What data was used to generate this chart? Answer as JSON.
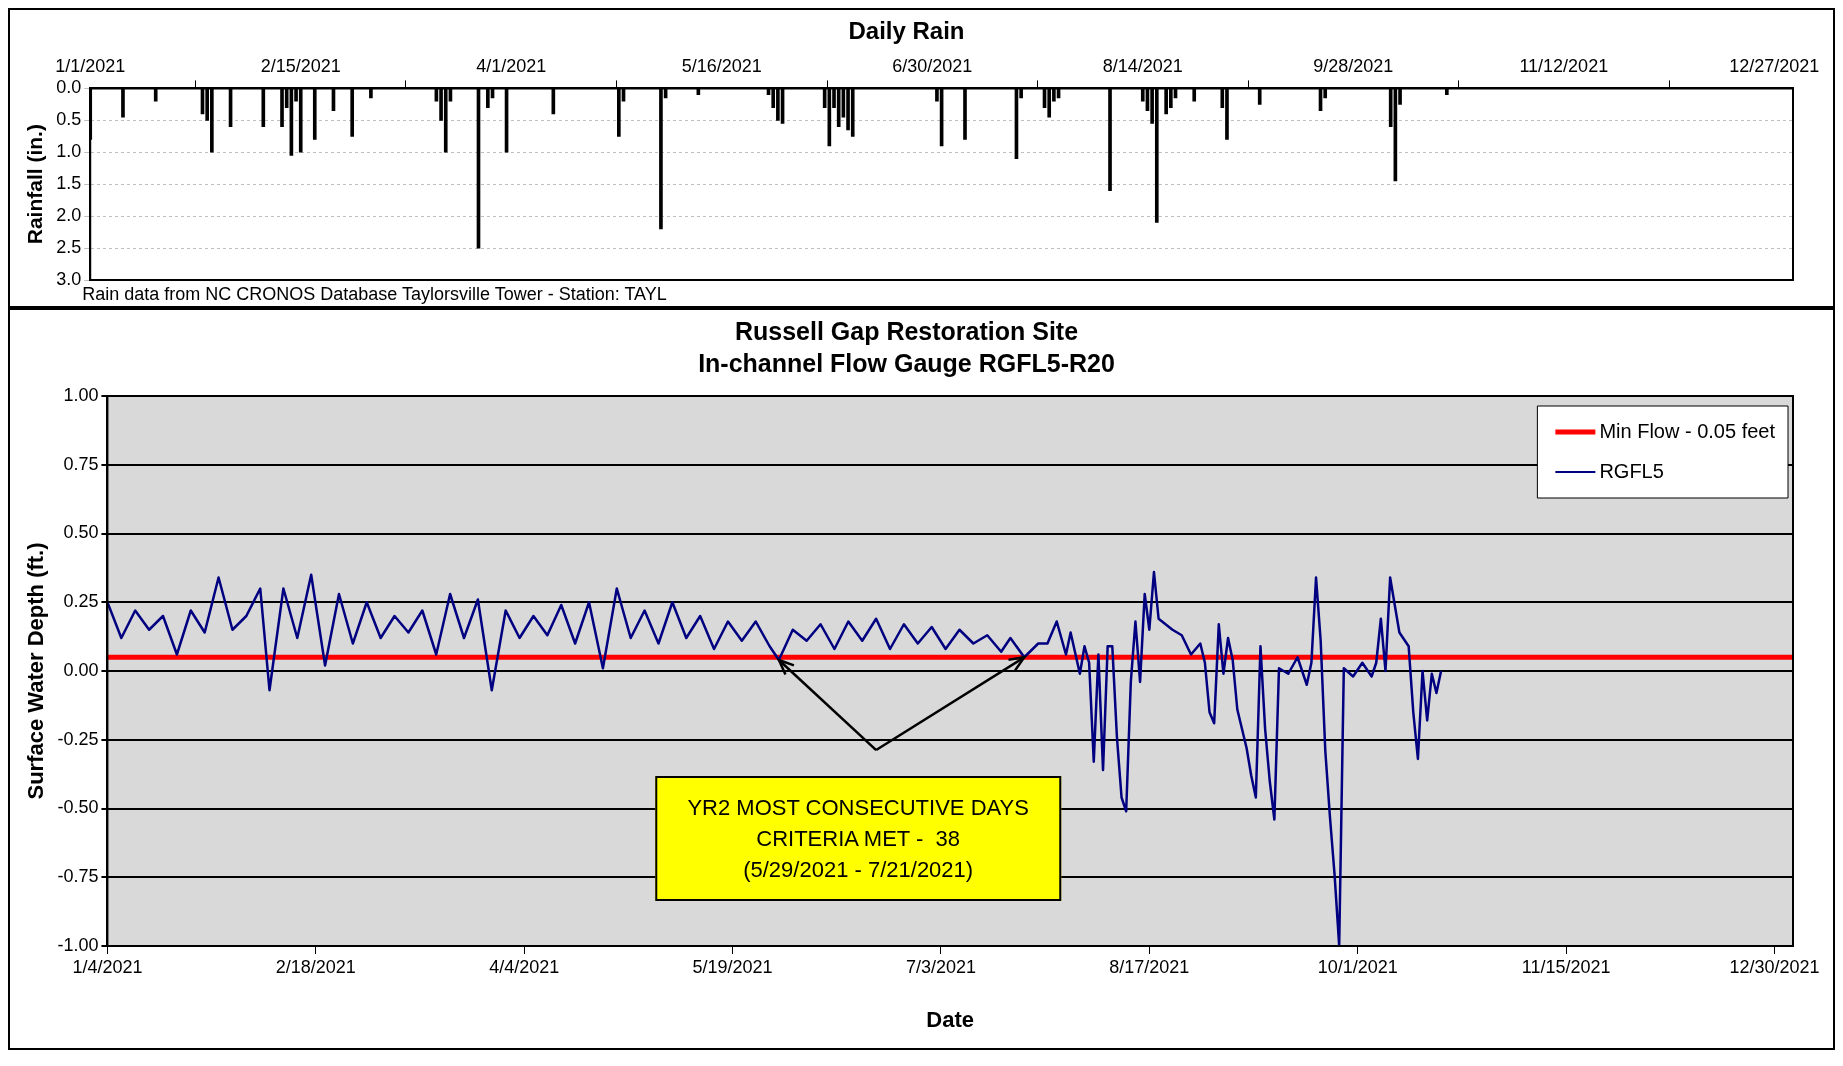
{
  "chart_data": [
    {
      "type": "bar",
      "title": "Daily Rain",
      "ylabel": "Rainfall (in.)",
      "color": "#000000",
      "x": [
        "2021-01-01",
        "2021-01-08",
        "2021-01-15",
        "2021-01-25",
        "2021-01-26",
        "2021-01-27",
        "2021-01-31",
        "2021-02-07",
        "2021-02-11",
        "2021-02-12",
        "2021-02-13",
        "2021-02-14",
        "2021-02-15",
        "2021-02-18",
        "2021-02-22",
        "2021-02-26",
        "2021-03-02",
        "2021-03-16",
        "2021-03-17",
        "2021-03-18",
        "2021-03-19",
        "2021-03-25",
        "2021-03-27",
        "2021-03-28",
        "2021-03-31",
        "2021-04-10",
        "2021-04-24",
        "2021-04-25",
        "2021-05-03",
        "2021-05-04",
        "2021-05-11",
        "2021-05-26",
        "2021-05-27",
        "2021-05-28",
        "2021-05-29",
        "2021-06-07",
        "2021-06-08",
        "2021-06-09",
        "2021-06-10",
        "2021-06-11",
        "2021-06-12",
        "2021-06-13",
        "2021-07-01",
        "2021-07-02",
        "2021-07-07",
        "2021-07-18",
        "2021-07-19",
        "2021-07-24",
        "2021-07-25",
        "2021-07-26",
        "2021-07-27",
        "2021-08-07",
        "2021-08-14",
        "2021-08-15",
        "2021-08-16",
        "2021-08-17",
        "2021-08-19",
        "2021-08-20",
        "2021-08-21",
        "2021-08-25",
        "2021-08-31",
        "2021-09-01",
        "2021-09-08",
        "2021-09-21",
        "2021-09-22",
        "2021-10-06",
        "2021-10-07",
        "2021-10-08",
        "2021-10-18"
      ],
      "values": [
        0.8,
        0.45,
        0.2,
        0.4,
        0.5,
        1.0,
        0.6,
        0.6,
        0.6,
        0.3,
        1.05,
        0.2,
        1.0,
        0.8,
        0.35,
        0.75,
        0.15,
        0.2,
        0.5,
        1.0,
        0.2,
        2.5,
        0.3,
        0.15,
        1.0,
        0.4,
        0.75,
        0.2,
        2.2,
        0.15,
        0.1,
        0.1,
        0.3,
        0.5,
        0.55,
        0.3,
        0.9,
        0.3,
        0.6,
        0.45,
        0.65,
        0.75,
        0.2,
        0.9,
        0.8,
        1.1,
        0.15,
        0.3,
        0.45,
        0.2,
        0.15,
        1.6,
        0.2,
        0.35,
        0.55,
        2.1,
        0.4,
        0.3,
        0.15,
        0.2,
        0.3,
        0.8,
        0.25,
        0.35,
        0.15,
        0.6,
        1.45,
        0.25,
        0.1
      ],
      "xlim": [
        "2021-01-01",
        "2021-12-31"
      ],
      "xticks": [
        {
          "value": "2021-01-01",
          "label": "1/1/2021"
        },
        {
          "value": "2021-02-15",
          "label": "2/15/2021"
        },
        {
          "value": "2021-04-01",
          "label": "4/1/2021"
        },
        {
          "value": "2021-05-16",
          "label": "5/16/2021"
        },
        {
          "value": "2021-06-30",
          "label": "6/30/2021"
        },
        {
          "value": "2021-08-14",
          "label": "8/14/2021"
        },
        {
          "value": "2021-09-28",
          "label": "9/28/2021"
        },
        {
          "value": "2021-11-12",
          "label": "11/12/2021"
        },
        {
          "value": "2021-12-27",
          "label": "12/27/2021"
        }
      ],
      "ylim": [
        3.0,
        0.0
      ],
      "yticks": [
        {
          "value": 0,
          "label": "0.0"
        },
        {
          "value": 0.5,
          "label": "0.5"
        },
        {
          "value": 1,
          "label": "1.0"
        },
        {
          "value": 1.5,
          "label": "1.5"
        },
        {
          "value": 2,
          "label": "2.0"
        },
        {
          "value": 2.5,
          "label": "2.5"
        },
        {
          "value": 3,
          "label": "3.0"
        }
      ],
      "grid": "y",
      "annotations": [
        "Rain data from NC CRONOS Database Taylorsville Tower - Station: TAYL"
      ]
    },
    {
      "type": "line",
      "title": "Russell Gap Restoration Site",
      "subtitle": "In-channel Flow Gauge RGFL5-R20",
      "xlabel": "Date",
      "ylabel": "Surface Water Depth (ft.)",
      "series": [
        {
          "name": "RGFL5",
          "color": "#000080",
          "x": [
            "2021-01-04",
            "2021-01-07",
            "2021-01-10",
            "2021-01-13",
            "2021-01-16",
            "2021-01-19",
            "2021-01-22",
            "2021-01-25",
            "2021-01-28",
            "2021-01-31",
            "2021-02-03",
            "2021-02-06",
            "2021-02-08",
            "2021-02-11",
            "2021-02-14",
            "2021-02-17",
            "2021-02-20",
            "2021-02-23",
            "2021-02-26",
            "2021-03-01",
            "2021-03-04",
            "2021-03-07",
            "2021-03-10",
            "2021-03-13",
            "2021-03-16",
            "2021-03-19",
            "2021-03-22",
            "2021-03-25",
            "2021-03-28",
            "2021-03-31",
            "2021-04-03",
            "2021-04-06",
            "2021-04-09",
            "2021-04-12",
            "2021-04-15",
            "2021-04-18",
            "2021-04-21",
            "2021-04-24",
            "2021-04-27",
            "2021-04-30",
            "2021-05-03",
            "2021-05-06",
            "2021-05-09",
            "2021-05-12",
            "2021-05-15",
            "2021-05-18",
            "2021-05-21",
            "2021-05-24",
            "2021-05-27",
            "2021-05-29",
            "2021-06-01",
            "2021-06-04",
            "2021-06-07",
            "2021-06-10",
            "2021-06-13",
            "2021-06-16",
            "2021-06-19",
            "2021-06-22",
            "2021-06-25",
            "2021-06-28",
            "2021-07-01",
            "2021-07-04",
            "2021-07-07",
            "2021-07-10",
            "2021-07-13",
            "2021-07-16",
            "2021-07-18",
            "2021-07-21",
            "2021-07-24",
            "2021-07-26",
            "2021-07-28",
            "2021-07-30",
            "2021-07-31",
            "2021-08-02",
            "2021-08-03",
            "2021-08-04",
            "2021-08-05",
            "2021-08-06",
            "2021-08-07",
            "2021-08-08",
            "2021-08-09",
            "2021-08-10",
            "2021-08-11",
            "2021-08-12",
            "2021-08-13",
            "2021-08-14",
            "2021-08-15",
            "2021-08-16",
            "2021-08-17",
            "2021-08-18",
            "2021-08-19",
            "2021-08-22",
            "2021-08-24",
            "2021-08-26",
            "2021-08-28",
            "2021-08-29",
            "2021-08-30",
            "2021-08-31",
            "2021-09-01",
            "2021-09-02",
            "2021-09-03",
            "2021-09-04",
            "2021-09-05",
            "2021-09-06",
            "2021-09-07",
            "2021-09-08",
            "2021-09-09",
            "2021-09-10",
            "2021-09-11",
            "2021-09-12",
            "2021-09-13",
            "2021-09-14",
            "2021-09-16",
            "2021-09-18",
            "2021-09-20",
            "2021-09-21",
            "2021-09-22",
            "2021-09-23",
            "2021-09-24",
            "2021-09-25",
            "2021-09-26",
            "2021-09-27",
            "2021-09-28",
            "2021-09-30",
            "2021-10-02",
            "2021-10-04",
            "2021-10-05",
            "2021-10-06",
            "2021-10-07",
            "2021-10-08",
            "2021-10-09",
            "2021-10-10",
            "2021-10-12",
            "2021-10-13",
            "2021-10-14",
            "2021-10-15",
            "2021-10-16",
            "2021-10-17",
            "2021-10-18",
            "2021-10-19"
          ],
          "values": [
            0.25,
            0.12,
            0.22,
            0.15,
            0.2,
            0.06,
            0.22,
            0.14,
            0.34,
            0.15,
            0.2,
            0.3,
            -0.07,
            0.3,
            0.12,
            0.35,
            0.02,
            0.28,
            0.1,
            0.25,
            0.12,
            0.2,
            0.14,
            0.22,
            0.06,
            0.28,
            0.12,
            0.26,
            -0.07,
            0.22,
            0.12,
            0.2,
            0.13,
            0.24,
            0.1,
            0.25,
            0.01,
            0.3,
            0.12,
            0.22,
            0.1,
            0.25,
            0.12,
            0.2,
            0.08,
            0.18,
            0.11,
            0.18,
            0.09,
            0.04,
            0.15,
            0.11,
            0.17,
            0.08,
            0.18,
            0.11,
            0.19,
            0.08,
            0.17,
            0.1,
            0.16,
            0.08,
            0.15,
            0.1,
            0.13,
            0.07,
            0.12,
            0.05,
            0.1,
            0.1,
            0.18,
            0.06,
            0.14,
            -0.01,
            0.09,
            0.03,
            -0.33,
            0.06,
            -0.36,
            0.09,
            0.09,
            -0.24,
            -0.46,
            -0.51,
            -0.04,
            0.18,
            -0.04,
            0.28,
            0.15,
            0.36,
            0.19,
            0.15,
            0.13,
            0.06,
            0.1,
            0.03,
            -0.15,
            -0.19,
            0.17,
            -0.01,
            0.12,
            0.04,
            -0.14,
            -0.21,
            -0.28,
            -0.38,
            -0.46,
            0.09,
            -0.21,
            -0.4,
            -0.54,
            0.01,
            -0.01,
            0.05,
            -0.05,
            0.03,
            0.34,
            0.11,
            -0.29,
            -0.53,
            -0.74,
            -1.0,
            0.01,
            -0.02,
            0.03,
            -0.02,
            0.03,
            0.19,
            0.0,
            0.34,
            0.24,
            0.14,
            0.09,
            -0.15,
            -0.32,
            0.0,
            -0.18,
            -0.01,
            -0.08,
            0.0
          ]
        }
      ],
      "ref_lines": [
        {
          "axis": "y",
          "value": 0.05,
          "label": "Min Flow - 0.05 feet",
          "color": "#ff0000"
        }
      ],
      "xlim": [
        "2021-01-04",
        "2022-01-03"
      ],
      "xticks": [
        {
          "value": "2021-01-04",
          "label": "1/4/2021"
        },
        {
          "value": "2021-02-18",
          "label": "2/18/2021"
        },
        {
          "value": "2021-04-04",
          "label": "4/4/2021"
        },
        {
          "value": "2021-05-19",
          "label": "5/19/2021"
        },
        {
          "value": "2021-07-03",
          "label": "7/3/2021"
        },
        {
          "value": "2021-08-17",
          "label": "8/17/2021"
        },
        {
          "value": "2021-10-01",
          "label": "10/1/2021"
        },
        {
          "value": "2021-11-15",
          "label": "11/15/2021"
        },
        {
          "value": "2021-12-30",
          "label": "12/30/2021"
        }
      ],
      "ylim": [
        -1.0,
        1.0
      ],
      "yticks": [
        {
          "value": -1,
          "label": "-1.00"
        },
        {
          "value": -0.75,
          "label": "-0.75"
        },
        {
          "value": -0.5,
          "label": "-0.50"
        },
        {
          "value": -0.25,
          "label": "-0.25"
        },
        {
          "value": 0,
          "label": "0.00"
        },
        {
          "value": 0.25,
          "label": "0.25"
        },
        {
          "value": 0.5,
          "label": "0.50"
        },
        {
          "value": 0.75,
          "label": "0.75"
        },
        {
          "value": 1,
          "label": "1.00"
        }
      ],
      "grid": "y",
      "legend": "top right",
      "marker": "none",
      "line_style": "solid",
      "annotations": [
        "YR2 MOST CONSECUTIVE DAYS\nCRITERIA MET -  38\n(5/29/2021 - 7/21/2021)"
      ]
    }
  ]
}
